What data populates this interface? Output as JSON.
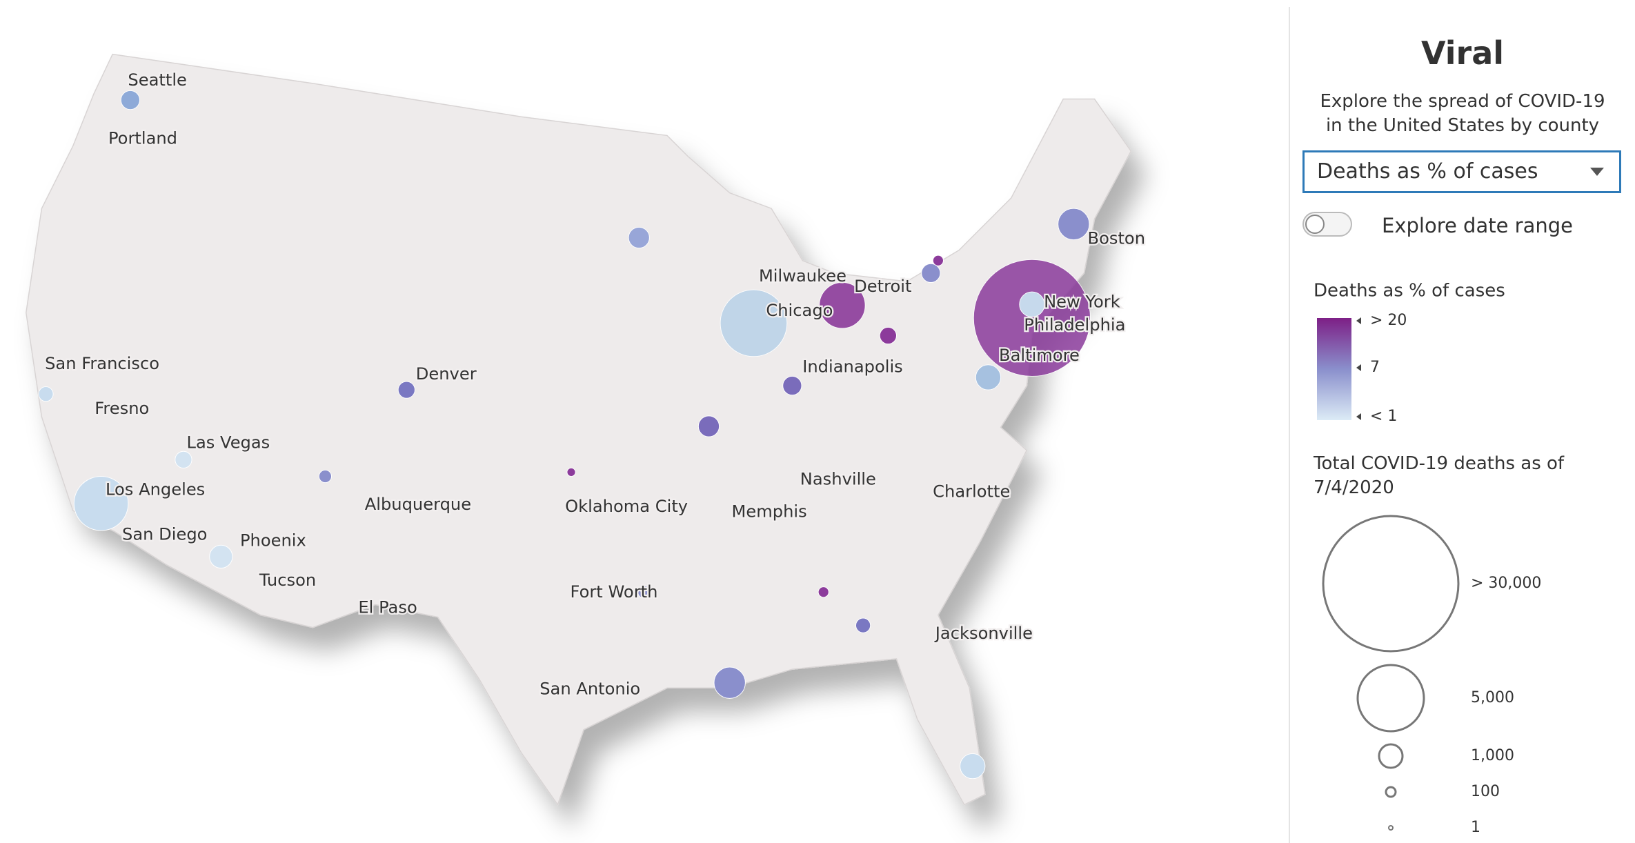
{
  "panel": {
    "title": "Viral",
    "description": "Explore the spread of COVID-19 in the United States by county",
    "dropdown": "Deaths as % of cases",
    "toggle_label": "Explore date range",
    "color_legend": {
      "title": "Deaths as % of cases",
      "labels": [
        "> 20",
        "7",
        "< 1"
      ]
    },
    "size_legend": {
      "title": "Total COVID-19 deaths as of 7/4/2020",
      "labels": [
        "> 30,000",
        "5,000",
        "1,000",
        "100",
        "1"
      ]
    }
  },
  "map": {
    "cities": [
      "Seattle",
      "Portland",
      "San Francisco",
      "Fresno",
      "Las Vegas",
      "Los Angeles",
      "San Diego",
      "Phoenix",
      "Tucson",
      "El Paso",
      "Albuquerque",
      "Denver",
      "Oklahoma City",
      "Fort Worth",
      "San Antonio",
      "Memphis",
      "Nashville",
      "Chicago",
      "Milwaukee",
      "Detroit",
      "Indianapolis",
      "Charlotte",
      "Jacksonville",
      "Baltimore",
      "Philadelphia",
      "New York",
      "Boston"
    ]
  }
}
